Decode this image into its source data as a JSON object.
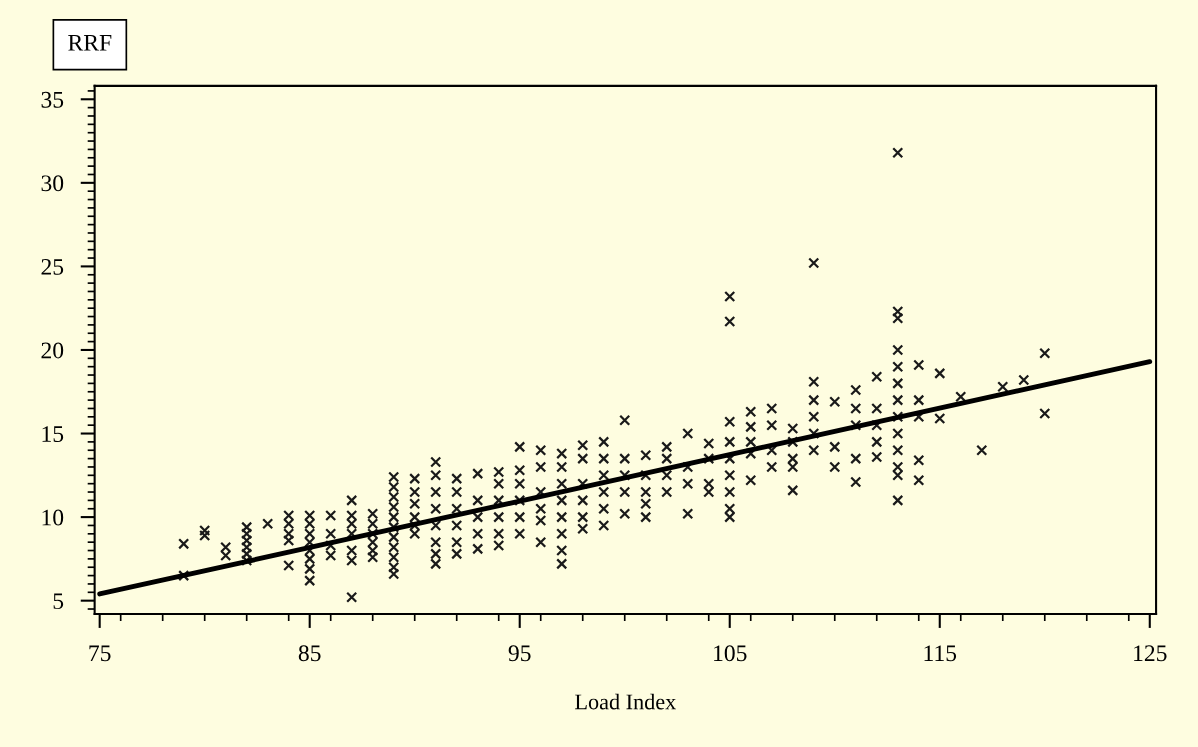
{
  "chart_data": {
    "type": "scatter",
    "ylabel": "RRF",
    "xlabel": "Load Index",
    "xlim": [
      74.76,
      125.3
    ],
    "xticks": [
      75,
      85,
      95,
      105,
      115,
      125
    ],
    "ylim": [
      4.2,
      35.8
    ],
    "yticks": [
      5,
      10,
      15,
      20,
      25,
      30,
      35
    ],
    "grid": false,
    "marker": "cross",
    "series": [
      {
        "color": "#1a1a1a",
        "x": [
          79,
          79,
          80,
          80,
          81,
          81,
          82,
          82,
          82,
          82,
          82,
          82,
          83,
          84,
          84,
          84,
          84,
          84,
          85,
          85,
          85,
          85,
          85,
          85,
          85,
          85,
          86,
          86,
          86,
          86,
          87,
          87,
          87,
          87,
          87,
          87,
          87,
          88,
          88,
          88,
          88,
          88,
          88,
          89,
          89,
          89,
          89,
          89,
          89,
          89,
          89,
          89,
          89,
          89,
          90,
          90,
          90,
          90,
          90,
          90,
          91,
          91,
          91,
          91,
          91,
          91,
          91,
          91,
          92,
          92,
          92,
          92,
          92,
          92,
          93,
          93,
          93,
          93,
          93,
          94,
          94,
          94,
          94,
          94,
          94,
          95,
          95,
          95,
          95,
          95,
          95,
          96,
          96,
          96,
          96,
          96,
          96,
          97,
          97,
          97,
          97,
          97,
          97,
          97,
          97,
          98,
          98,
          98,
          98,
          98,
          98,
          99,
          99,
          99,
          99,
          99,
          99,
          100,
          100,
          100,
          100,
          100,
          101,
          101,
          101,
          101,
          101,
          102,
          102,
          102,
          102,
          103,
          103,
          103,
          103,
          104,
          104,
          104,
          104,
          105,
          105,
          105,
          105,
          105,
          105,
          105,
          105,
          105,
          106,
          106,
          106,
          106,
          106,
          107,
          107,
          107,
          107,
          108,
          108,
          108,
          108,
          108,
          109,
          109,
          109,
          109,
          109,
          109,
          110,
          110,
          110,
          111,
          111,
          111,
          111,
          111,
          112,
          112,
          112,
          112,
          112,
          113,
          113,
          113,
          113,
          113,
          113,
          113,
          113,
          113,
          113,
          113,
          113,
          113,
          114,
          114,
          114,
          114,
          114,
          115,
          115,
          116,
          117,
          118,
          119,
          120,
          120
        ],
        "values": [
          8.4,
          6.5,
          9.2,
          8.9,
          8.2,
          7.7,
          9.4,
          9.0,
          8.6,
          8.2,
          7.8,
          7.4,
          9.6,
          10.1,
          9.6,
          9.0,
          8.6,
          7.1,
          10.1,
          9.6,
          9.0,
          8.5,
          8.0,
          7.5,
          6.9,
          6.2,
          10.1,
          9.0,
          8.3,
          7.7,
          11.0,
          10.1,
          9.6,
          9.0,
          8.0,
          7.4,
          5.2,
          10.2,
          9.6,
          9.0,
          8.5,
          8.0,
          7.6,
          12.4,
          11.8,
          11.2,
          10.6,
          10.0,
          9.4,
          8.8,
          8.2,
          7.6,
          7.0,
          6.6,
          12.3,
          11.5,
          10.8,
          10.0,
          9.5,
          9.0,
          13.3,
          12.5,
          11.5,
          10.5,
          9.5,
          8.5,
          7.8,
          7.2,
          12.3,
          11.5,
          10.5,
          9.5,
          8.5,
          7.8,
          12.6,
          11.0,
          10.0,
          9.0,
          8.1,
          12.7,
          12.0,
          11.0,
          10.0,
          9.0,
          8.3,
          14.2,
          12.8,
          12.0,
          11.0,
          10.0,
          9.0,
          14.0,
          13.0,
          11.5,
          10.5,
          9.8,
          8.5,
          13.8,
          13.0,
          12.0,
          11.0,
          10.0,
          9.0,
          8.0,
          7.2,
          14.3,
          13.5,
          12.0,
          11.0,
          10.0,
          9.3,
          14.5,
          13.5,
          12.5,
          11.5,
          10.5,
          9.5,
          15.8,
          13.5,
          12.5,
          11.5,
          10.2,
          13.7,
          12.5,
          11.5,
          10.8,
          10.0,
          14.2,
          13.5,
          12.5,
          11.5,
          15.0,
          13.0,
          12.0,
          10.2,
          14.4,
          13.5,
          12.0,
          11.5,
          23.2,
          21.7,
          15.7,
          14.5,
          13.5,
          12.5,
          11.5,
          10.5,
          10.0,
          16.3,
          15.4,
          14.5,
          13.8,
          12.2,
          16.5,
          15.5,
          14.0,
          13.0,
          15.3,
          14.5,
          13.5,
          13.0,
          11.6,
          25.2,
          18.1,
          17.0,
          16.0,
          15.0,
          14.0,
          16.9,
          14.2,
          13.0,
          17.6,
          16.5,
          15.5,
          13.5,
          12.1,
          18.4,
          16.5,
          15.5,
          14.5,
          13.6,
          31.8,
          22.3,
          21.9,
          20.0,
          19.0,
          18.0,
          17.0,
          16.0,
          15.0,
          14.0,
          13.0,
          12.5,
          11.0,
          19.1,
          17.0,
          16.0,
          13.4,
          12.2,
          18.6,
          15.9,
          17.2,
          14.0,
          17.8,
          18.2,
          19.8,
          16.2
        ]
      },
      {
        "type": "line",
        "color": "#000000",
        "marker": "none",
        "x": [
          75,
          125
        ],
        "values": [
          5.4,
          19.3
        ]
      }
    ]
  }
}
